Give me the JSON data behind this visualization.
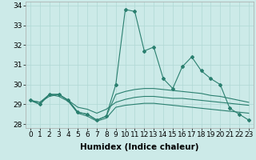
{
  "title": "",
  "xlabel": "Humidex (Indice chaleur)",
  "x": [
    0,
    1,
    2,
    3,
    4,
    5,
    6,
    7,
    8,
    9,
    10,
    11,
    12,
    13,
    14,
    15,
    16,
    17,
    18,
    19,
    20,
    21,
    22,
    23
  ],
  "line1": [
    29.2,
    29.0,
    29.5,
    29.5,
    29.2,
    28.6,
    28.5,
    28.2,
    28.4,
    30.0,
    33.8,
    33.7,
    31.7,
    31.9,
    30.3,
    29.8,
    30.9,
    31.4,
    30.7,
    30.3,
    30.0,
    28.8,
    28.5,
    28.2
  ],
  "line2": [
    29.2,
    29.1,
    29.5,
    29.5,
    29.2,
    28.6,
    28.5,
    28.2,
    28.4,
    29.5,
    29.65,
    29.75,
    29.8,
    29.8,
    29.75,
    29.7,
    29.65,
    29.6,
    29.55,
    29.45,
    29.4,
    29.3,
    29.2,
    29.1
  ],
  "line3": [
    29.2,
    29.1,
    29.4,
    29.5,
    29.2,
    28.85,
    28.75,
    28.55,
    28.75,
    29.1,
    29.25,
    29.35,
    29.4,
    29.4,
    29.35,
    29.3,
    29.3,
    29.25,
    29.2,
    29.15,
    29.1,
    29.05,
    29.0,
    28.95
  ],
  "line4": [
    29.2,
    29.0,
    29.5,
    29.4,
    29.15,
    28.55,
    28.4,
    28.15,
    28.3,
    28.85,
    28.95,
    29.0,
    29.05,
    29.05,
    29.0,
    28.95,
    28.9,
    28.85,
    28.8,
    28.75,
    28.7,
    28.65,
    28.6,
    28.55
  ],
  "ylim": [
    27.8,
    34.2
  ],
  "yticks": [
    28,
    29,
    30,
    31,
    32,
    33,
    34
  ],
  "xlim": [
    -0.5,
    23.5
  ],
  "line_color": "#2a7f6f",
  "bg_color": "#cceae8",
  "grid_color": "#b0d8d5",
  "tick_fontsize": 6.5,
  "label_fontsize": 7.5
}
